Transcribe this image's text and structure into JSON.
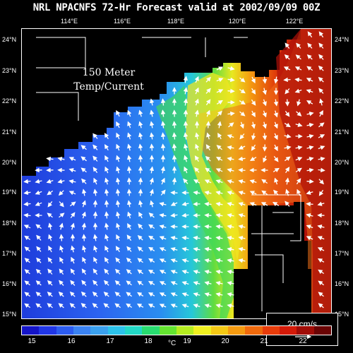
{
  "header": {
    "title": "NRL NPACNFS 72-Hr Forecast valid at 2002/09/09 00Z"
  },
  "panel": {
    "depth_label_line1": "150 Meter",
    "depth_label_line2": "Temp/Current"
  },
  "axes": {
    "lon_labels": [
      "114°E",
      "116°E",
      "118°E",
      "120°E",
      "122°E"
    ],
    "lat_labels": [
      "24°N",
      "23°N",
      "22°N",
      "21°N",
      "20°N",
      "19°N",
      "18°N",
      "17°N",
      "16°N",
      "15°N"
    ]
  },
  "scale": {
    "label": "20 cm/s"
  },
  "colorbar": {
    "ticks": [
      "15",
      "16",
      "17",
      "18",
      "19",
      "20",
      "21",
      "22"
    ],
    "unit": "°C",
    "colors": [
      "#1414c8",
      "#2036e6",
      "#2c5cf0",
      "#3a82f2",
      "#3aa0ee",
      "#2cc2ea",
      "#22d8c6",
      "#28dc70",
      "#64e430",
      "#b4ec20",
      "#f0f020",
      "#f4c814",
      "#f49a10",
      "#f06a0c",
      "#e83c0a",
      "#d41a08",
      "#a00c06",
      "#6a0404"
    ]
  },
  "colors": {
    "land": "#000000",
    "border": "#ffffff",
    "vector": "#ffffff"
  }
}
